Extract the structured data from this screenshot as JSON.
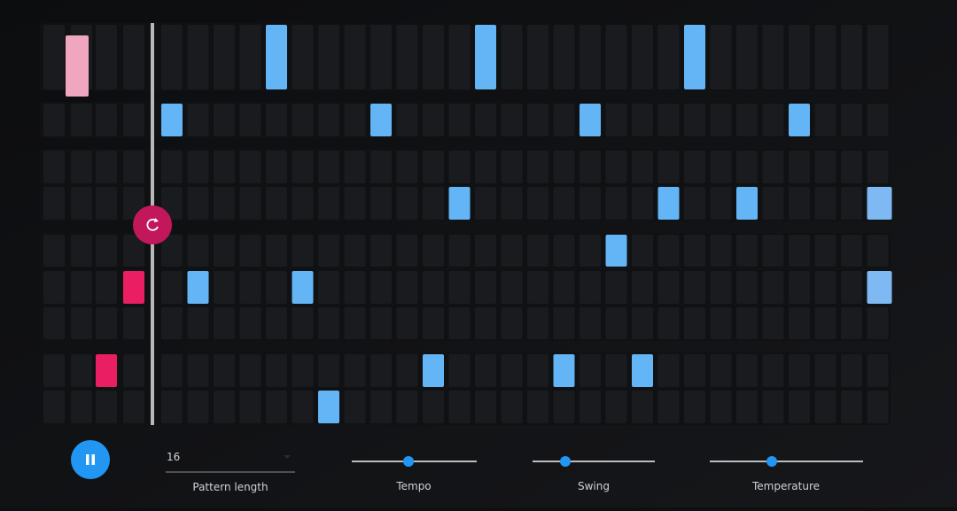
{
  "controls": {
    "pattern_length": {
      "value": "16",
      "label": "Pattern length"
    },
    "tempo": {
      "label": "Tempo"
    },
    "swing": {
      "label": "Swing"
    },
    "temperature": {
      "label": "Temperature"
    }
  }
}
